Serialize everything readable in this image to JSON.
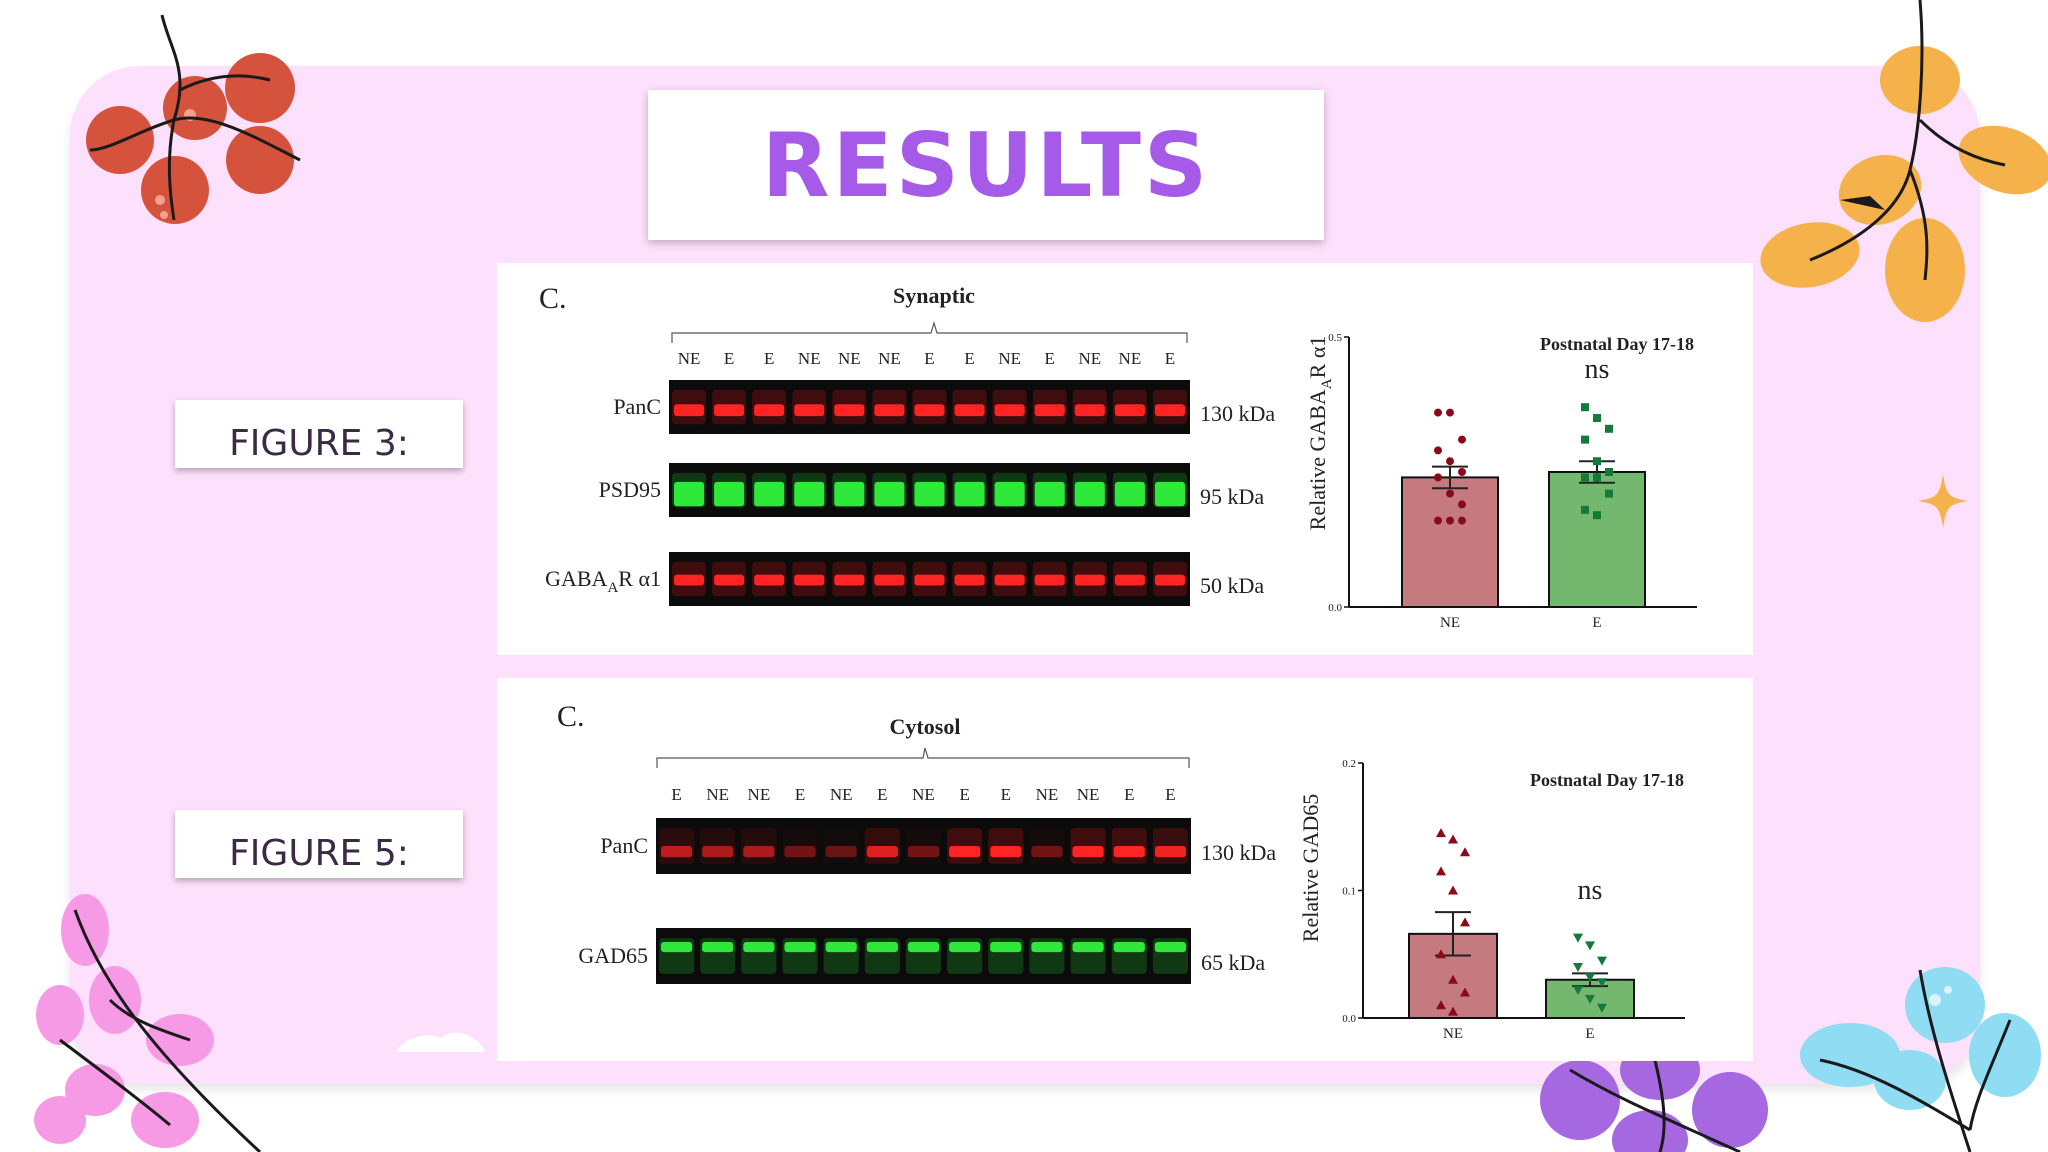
{
  "title": "RESULTS",
  "figure3_label": "FIGURE 3:",
  "figure5_label": "FIGURE 5:",
  "panel_synaptic": {
    "panel_letter": "C.",
    "group_label": "Synaptic",
    "lanes": [
      "NE",
      "E",
      "E",
      "NE",
      "NE",
      "NE",
      "E",
      "E",
      "NE",
      "E",
      "NE",
      "NE",
      "E"
    ],
    "blots": [
      {
        "label": "PanC",
        "kda": "130 kDa",
        "color": "red"
      },
      {
        "label": "PSD95",
        "kda": "95 kDa",
        "color": "green"
      },
      {
        "label": "GABA",
        "label_sub": "A",
        "label_rest": "R α1",
        "kda": "50 kDa",
        "color": "red"
      }
    ]
  },
  "panel_cytosol": {
    "panel_letter": "C.",
    "group_label": "Cytosol",
    "lanes": [
      "E",
      "NE",
      "NE",
      "E",
      "NE",
      "E",
      "NE",
      "E",
      "E",
      "NE",
      "NE",
      "E",
      "E"
    ],
    "blots": [
      {
        "label": "PanC",
        "kda": "130 kDa",
        "color": "red"
      },
      {
        "label": "GAD65",
        "kda": "65 kDa",
        "color": "green"
      }
    ]
  },
  "chart_data": [
    {
      "type": "bar",
      "title": "Postnatal Day 17-18",
      "ylabel": "Relative GABAAR α1",
      "ylabel_main": "Relative GABA",
      "ylabel_sub": "A",
      "ylabel_rest": "R α1",
      "ylim": [
        0,
        0.5
      ],
      "yticks": [
        "0.0",
        "0.5"
      ],
      "categories": [
        "NE",
        "E"
      ],
      "values": [
        0.24,
        0.25
      ],
      "sem": [
        0.02,
        0.02
      ],
      "annotation": "ns",
      "colors": [
        "#c47a7e",
        "#74b870"
      ],
      "point_colors": [
        "#8b0a1a",
        "#137a3a"
      ],
      "points": [
        [
          0.36,
          0.36,
          0.31,
          0.29,
          0.27,
          0.25,
          0.24,
          0.21,
          0.19,
          0.16,
          0.16,
          0.16
        ],
        [
          0.37,
          0.35,
          0.33,
          0.31,
          0.27,
          0.25,
          0.24,
          0.24,
          0.21,
          0.18,
          0.17
        ]
      ],
      "point_shapes": [
        "circle",
        "square"
      ]
    },
    {
      "type": "bar",
      "title": "Postnatal Day 17-18",
      "ylabel": "Relative GAD65",
      "ylim": [
        0,
        0.2
      ],
      "yticks": [
        "0.0",
        "0.1",
        "0.2"
      ],
      "categories": [
        "NE",
        "E"
      ],
      "values": [
        0.066,
        0.03
      ],
      "sem": [
        0.017,
        0.005
      ],
      "annotation": "ns",
      "colors": [
        "#c47a7e",
        "#74b870"
      ],
      "point_colors": [
        "#8b0a1a",
        "#137a3a"
      ],
      "points": [
        [
          0.145,
          0.14,
          0.13,
          0.115,
          0.1,
          0.075,
          0.05,
          0.03,
          0.02,
          0.01,
          0.005
        ],
        [
          0.063,
          0.057,
          0.045,
          0.04,
          0.032,
          0.028,
          0.022,
          0.015,
          0.008
        ]
      ],
      "point_shapes": [
        "triangle-up",
        "triangle-down"
      ]
    }
  ]
}
